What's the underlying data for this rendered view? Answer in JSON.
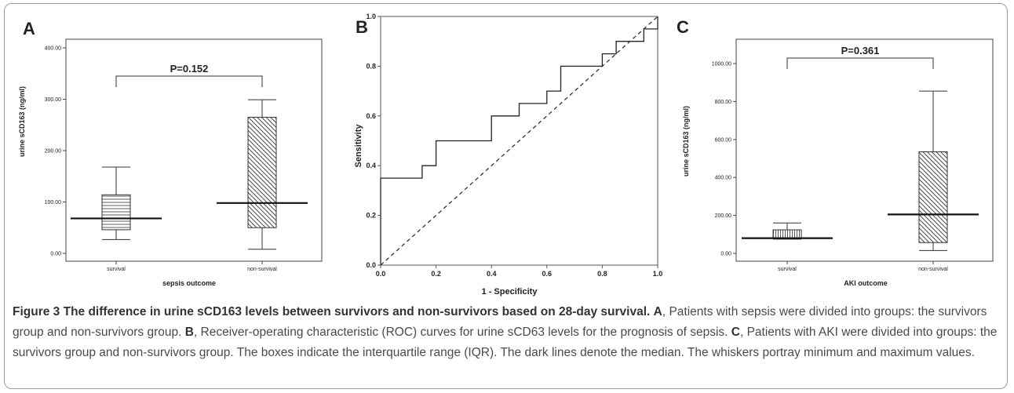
{
  "charts": {
    "A": {
      "letter": "A",
      "ylabel": "urine sCD163 (ng/ml)",
      "xlabel": "sepsis outcome",
      "categories": [
        "survival",
        "non-survival"
      ],
      "yticks": [
        "0.00",
        "100.00",
        "200.00",
        "300.00",
        "400.00"
      ],
      "pvalue": "P=0.152"
    },
    "B": {
      "letter": "B",
      "ylabel": "Sensitivity",
      "xlabel": "1 - Specificity",
      "xticks": [
        "0.0",
        "0.2",
        "0.4",
        "0.6",
        "0.8",
        "1.0"
      ],
      "yticks": [
        "0.0",
        "0.2",
        "0.4",
        "0.6",
        "0.8",
        "1.0"
      ]
    },
    "C": {
      "letter": "C",
      "ylabel": "urine sCD163 (ng/ml)",
      "xlabel": "AKI outcome",
      "categories": [
        "survival",
        "non-survival"
      ],
      "yticks": [
        "0.00",
        "200.00",
        "400.00",
        "600.00",
        "800.00",
        "1000.00"
      ],
      "pvalue": "P=0.361"
    }
  },
  "chart_data": [
    {
      "type": "box",
      "panel": "A",
      "title": "",
      "xlabel": "sepsis outcome",
      "ylabel": "urine sCD163 (ng/ml)",
      "ylim": [
        0,
        400
      ],
      "categories": [
        "survival",
        "non-survival"
      ],
      "boxes": [
        {
          "category": "survival",
          "min": 27,
          "q1": 46,
          "median": 68,
          "q3": 114,
          "max": 168
        },
        {
          "category": "non-survival",
          "min": 8,
          "q1": 50,
          "median": 98,
          "q3": 265,
          "max": 299
        }
      ],
      "annotation": "P=0.152",
      "grid": false
    },
    {
      "type": "line",
      "panel": "B",
      "title": "",
      "xlabel": "1 - Specificity",
      "ylabel": "Sensitivity",
      "xlim": [
        0,
        1
      ],
      "ylim": [
        0,
        1
      ],
      "series": [
        {
          "style": "step",
          "points": [
            [
              0,
              0
            ],
            [
              0,
              0.35
            ],
            [
              0.15,
              0.35
            ],
            [
              0.15,
              0.4
            ],
            [
              0.2,
              0.4
            ],
            [
              0.2,
              0.5
            ],
            [
              0.4,
              0.5
            ],
            [
              0.4,
              0.6
            ],
            [
              0.5,
              0.6
            ],
            [
              0.5,
              0.65
            ],
            [
              0.6,
              0.65
            ],
            [
              0.6,
              0.7
            ],
            [
              0.65,
              0.7
            ],
            [
              0.65,
              0.8
            ],
            [
              0.8,
              0.8
            ],
            [
              0.8,
              0.85
            ],
            [
              0.85,
              0.85
            ],
            [
              0.85,
              0.9
            ],
            [
              0.95,
              0.9
            ],
            [
              0.95,
              0.95
            ],
            [
              1.0,
              0.95
            ],
            [
              1.0,
              1.0
            ]
          ]
        },
        {
          "style": "dashed",
          "points": [
            [
              0,
              0
            ],
            [
              1,
              1
            ]
          ]
        }
      ],
      "grid": false
    },
    {
      "type": "box",
      "panel": "C",
      "title": "",
      "xlabel": "AKI outcome",
      "ylabel": "urine sCD163 (ng/ml)",
      "ylim": [
        0,
        1000
      ],
      "categories": [
        "survival",
        "non-survival"
      ],
      "boxes": [
        {
          "category": "survival",
          "min": 75,
          "q1": 80,
          "median": 80,
          "q3": 124,
          "max": 160
        },
        {
          "category": "non-survival",
          "min": 15,
          "q1": 57,
          "median": 205,
          "q3": 535,
          "max": 855
        }
      ],
      "annotation": "P=0.361",
      "grid": false
    }
  ],
  "caption": {
    "title": "Figure 3 The difference in urine sCD163 levels between survivors and non-survivors based on 28-day survival.",
    "a_label": "A",
    "a_text": ", Patients with sepsis were divided into groups: the survivors group and non-survivors group.",
    "b_label": "B",
    "b_text": ", Receiver-operating characteristic (ROC) curves for urine sCD63 levels for the prognosis of sepsis.",
    "c_label": "C",
    "c_text": ", Patients with AKI were divided into groups: the survivors group and non-survivors group. The boxes indicate the interquartile range (IQR). The dark lines denote the median. The whiskers portray minimum and maximum values."
  }
}
